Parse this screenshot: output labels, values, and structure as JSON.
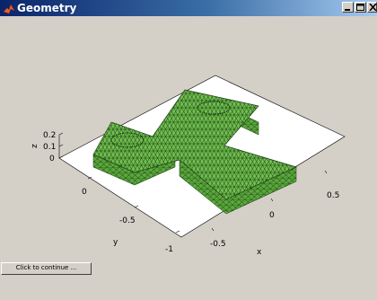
{
  "window": {
    "title": "Geometry",
    "title_icon": "matlab-logo-icon",
    "controls": [
      "minimize-icon",
      "maximize-icon",
      "close-icon"
    ]
  },
  "axes": {
    "z_label": "z",
    "y_label": "y",
    "x_label": "x",
    "z_ticks": [
      "0.2",
      "0.1",
      "0"
    ],
    "y_ticks": [
      "0",
      "-0.5",
      "-1"
    ],
    "x_ticks": [
      "-0.5",
      "0",
      "0.5"
    ]
  },
  "surface": {
    "face_color": "#6fbf4f",
    "edge_color": "#1a3a10",
    "background": "#ffffff",
    "shape": "y-shaped-plate-mesh"
  },
  "continue_button": {
    "label": "Click to continue ..."
  }
}
